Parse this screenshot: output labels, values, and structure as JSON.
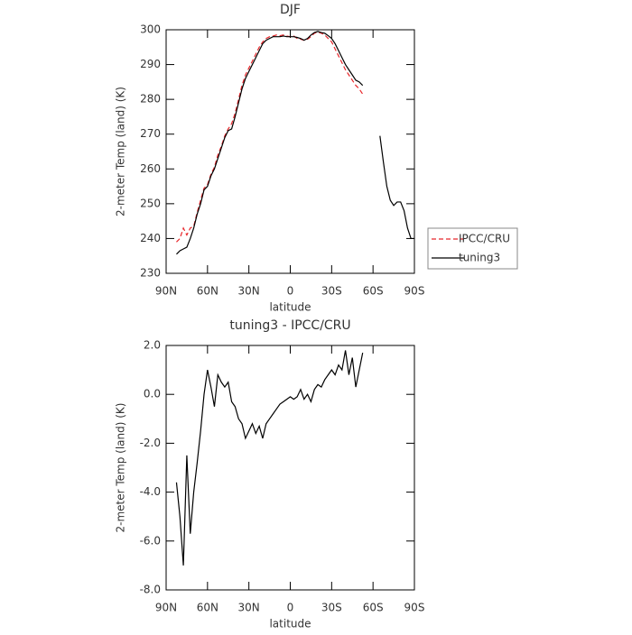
{
  "chart_data": [
    {
      "type": "line",
      "title": "DJF",
      "xlabel": "latitude",
      "ylabel": "2-meter Temp (land) (K)",
      "x": [
        82.5,
        80,
        77.5,
        75,
        72.5,
        70,
        67.5,
        65,
        62.5,
        60,
        57.5,
        55,
        52.5,
        50,
        47.5,
        45,
        42.5,
        40,
        37.5,
        35,
        32.5,
        30,
        27.5,
        25,
        22.5,
        20,
        17.5,
        15,
        12.5,
        10,
        7.5,
        5,
        2.5,
        0,
        -2.5,
        -5,
        -7.5,
        -10,
        -12.5,
        -15,
        -17.5,
        -20,
        -22.5,
        -25,
        -27.5,
        -30,
        -32.5,
        -35,
        -37.5,
        -40,
        -42.5,
        -45,
        -47.5,
        -50,
        -52.5,
        -55,
        -57.5,
        -60,
        -62.5,
        -65,
        -67.5,
        -70,
        -72.5,
        -75,
        -77.5,
        -80,
        -82.5,
        -85,
        -87.5,
        -90
      ],
      "series": [
        {
          "name": "IPCC/CRU",
          "color": "#e8262a",
          "linestyle": "dashed",
          "values": [
            239,
            240,
            243,
            241,
            243,
            243.5,
            247.5,
            251,
            254.5,
            255.5,
            258.5,
            260.5,
            264,
            266.5,
            269.5,
            271.5,
            273,
            276,
            280,
            284,
            287,
            289,
            291,
            293,
            295,
            296.5,
            297.5,
            298,
            298.2,
            298.5,
            298.3,
            298.5,
            298.2,
            298,
            298.2,
            297.5,
            297.3,
            297,
            297.3,
            298,
            299,
            299.3,
            299,
            298.5,
            297.5,
            296.5,
            294.5,
            292.5,
            290.5,
            288.5,
            287,
            285.5,
            284,
            283,
            281.5,
            null,
            null,
            null,
            null,
            null,
            null,
            null,
            null,
            null,
            null,
            null,
            null,
            null,
            null,
            null
          ]
        },
        {
          "name": "tuning3",
          "color": "#000000",
          "linestyle": "solid",
          "values": [
            235.5,
            236.5,
            237,
            237.5,
            240,
            243,
            247,
            250,
            254,
            255,
            258,
            260,
            263,
            266,
            269,
            271,
            271.5,
            275,
            279,
            283,
            286,
            288,
            290,
            292,
            294,
            296,
            297,
            297.5,
            298,
            298,
            298,
            298.2,
            298,
            298,
            298,
            297.8,
            297.5,
            297,
            297.5,
            298.5,
            299.2,
            299.5,
            299.2,
            299,
            298.3,
            297.5,
            296,
            294,
            292,
            290,
            288.5,
            287,
            285.5,
            285,
            284,
            null,
            null,
            null,
            null,
            269.5,
            262,
            255,
            251,
            249.5,
            250.5,
            250.5,
            248,
            243,
            240,
            240
          ]
        }
      ],
      "xlim": [
        90,
        -90
      ],
      "xticks": [
        {
          "value": 90,
          "label": "90N"
        },
        {
          "value": 60,
          "label": "60N"
        },
        {
          "value": 30,
          "label": "30N"
        },
        0,
        {
          "value": -30,
          "label": "30S"
        },
        {
          "value": -60,
          "label": "60S"
        },
        {
          "value": -90,
          "label": "90S"
        }
      ],
      "ylim": [
        230,
        300
      ],
      "yticks": [
        230,
        240,
        250,
        260,
        270,
        280,
        290,
        300
      ],
      "legend": "outside right"
    },
    {
      "type": "line",
      "title": "tuning3 - IPCC/CRU",
      "xlabel": "latitude",
      "ylabel": "2-meter Temp (land) (K)",
      "x": [
        82.5,
        80,
        77.5,
        75,
        72.5,
        70,
        67.5,
        65,
        62.5,
        60,
        57.5,
        55,
        52.5,
        50,
        47.5,
        45,
        42.5,
        40,
        37.5,
        35,
        32.5,
        30,
        27.5,
        25,
        22.5,
        20,
        17.5,
        15,
        12.5,
        10,
        7.5,
        5,
        2.5,
        0,
        -2.5,
        -5,
        -7.5,
        -10,
        -12.5,
        -15,
        -17.5,
        -20,
        -22.5,
        -25,
        -27.5,
        -30,
        -32.5,
        -35,
        -37.5,
        -40,
        -42.5,
        -45,
        -47.5,
        -50,
        -52.5
      ],
      "series": [
        {
          "color": "#000000",
          "linestyle": "solid",
          "values": [
            -3.6,
            -5,
            -7,
            -2.5,
            -5.7,
            -4,
            -2.8,
            -1.5,
            0,
            1,
            0.3,
            -0.5,
            0.8,
            0.5,
            0.3,
            0.5,
            -0.3,
            -0.5,
            -1,
            -1.2,
            -1.8,
            -1.5,
            -1.2,
            -1.6,
            -1.3,
            -1.8,
            -1.2,
            -1,
            -0.8,
            -0.6,
            -0.4,
            -0.3,
            -0.2,
            -0.1,
            -0.2,
            -0.1,
            0.2,
            -0.2,
            0,
            -0.3,
            0.2,
            0.4,
            0.3,
            0.6,
            0.8,
            1,
            0.8,
            1.2,
            1,
            1.8,
            0.8,
            1.5,
            0.3,
            1,
            1.7
          ]
        }
      ],
      "xlim": [
        90,
        -90
      ],
      "xticks": [
        {
          "value": 90,
          "label": "90N"
        },
        {
          "value": 60,
          "label": "60N"
        },
        {
          "value": 30,
          "label": "30N"
        },
        0,
        {
          "value": -30,
          "label": "30S"
        },
        {
          "value": -60,
          "label": "60S"
        },
        {
          "value": -90,
          "label": "90S"
        }
      ],
      "ylim": [
        -8,
        2
      ],
      "yticks": [
        {
          "value": -8,
          "label": "-8.0"
        },
        {
          "value": -6,
          "label": "-6.0"
        },
        {
          "value": -4,
          "label": "-4.0"
        },
        {
          "value": -2,
          "label": "-2.0"
        },
        {
          "value": 0,
          "label": "0.0"
        },
        {
          "value": 2,
          "label": "2.0"
        }
      ]
    }
  ]
}
